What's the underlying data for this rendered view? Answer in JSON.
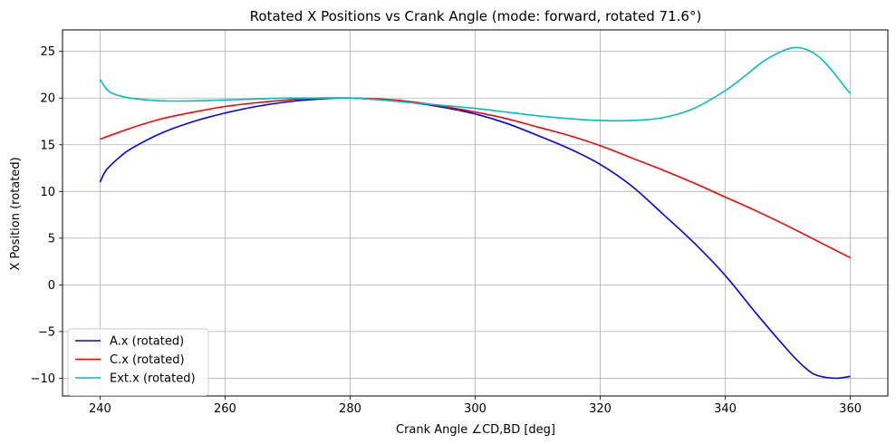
{
  "chart_data": {
    "type": "line",
    "title": "Rotated X Positions vs Crank Angle (mode: forward, rotated 71.6°)",
    "xlabel": "Crank Angle ∠CD,BD [deg]",
    "ylabel": "X Position (rotated)",
    "xlim": [
      234,
      366
    ],
    "ylim": [
      -11.9,
      27.3
    ],
    "xticks": [
      240,
      260,
      280,
      300,
      320,
      340,
      360
    ],
    "yticks": [
      -10,
      -5,
      0,
      5,
      10,
      15,
      20,
      25
    ],
    "xtick_labels": [
      "240",
      "260",
      "280",
      "300",
      "320",
      "340",
      "360"
    ],
    "ytick_labels": [
      "−10",
      "−5",
      "0",
      "5",
      "10",
      "15",
      "20",
      "25"
    ],
    "grid": true,
    "legend_position": "lower-left",
    "series": [
      {
        "name": "A.x (rotated)",
        "color": "#0000ff",
        "x": [
          240,
          241,
          243,
          245,
          250,
          255,
          260,
          265,
          270,
          275,
          280,
          285,
          290,
          295,
          300,
          305,
          310,
          315,
          320,
          325,
          330,
          335,
          340,
          345,
          350,
          352,
          354,
          356,
          358,
          360
        ],
        "y": [
          11.0,
          12.3,
          13.6,
          14.6,
          16.3,
          17.5,
          18.4,
          19.1,
          19.6,
          19.9,
          20.0,
          19.8,
          19.5,
          19.0,
          18.3,
          17.3,
          16.0,
          14.6,
          12.9,
          10.6,
          7.6,
          4.5,
          1.0,
          -3.1,
          -7.0,
          -8.4,
          -9.5,
          -9.9,
          -10.0,
          -9.8
        ]
      },
      {
        "name": "C.x (rotated)",
        "color": "#ff0000",
        "x": [
          240,
          245,
          250,
          255,
          260,
          265,
          270,
          275,
          280,
          285,
          290,
          295,
          300,
          305,
          310,
          315,
          320,
          325,
          330,
          335,
          340,
          345,
          350,
          355,
          360
        ],
        "y": [
          15.6,
          16.8,
          17.8,
          18.5,
          19.1,
          19.5,
          19.8,
          20.0,
          20.0,
          19.9,
          19.6,
          19.1,
          18.5,
          17.8,
          16.9,
          16.0,
          14.9,
          13.6,
          12.3,
          10.9,
          9.4,
          7.9,
          6.3,
          4.6,
          2.9
        ]
      },
      {
        "name": "Ext.x (rotated)",
        "color": "#00bfbf",
        "x": [
          240,
          241,
          242,
          244,
          246,
          250,
          255,
          260,
          265,
          270,
          275,
          280,
          285,
          290,
          295,
          300,
          305,
          310,
          315,
          320,
          325,
          330,
          335,
          340,
          343,
          346,
          349,
          351,
          353,
          355,
          357,
          359,
          360
        ],
        "y": [
          22.0,
          21.0,
          20.5,
          20.1,
          19.9,
          19.7,
          19.7,
          19.8,
          19.9,
          20.0,
          20.0,
          20.0,
          19.8,
          19.5,
          19.2,
          18.9,
          18.5,
          18.1,
          17.8,
          17.6,
          17.6,
          17.9,
          18.9,
          20.8,
          22.3,
          23.9,
          25.0,
          25.4,
          25.2,
          24.4,
          23.0,
          21.3,
          20.5
        ]
      }
    ]
  }
}
